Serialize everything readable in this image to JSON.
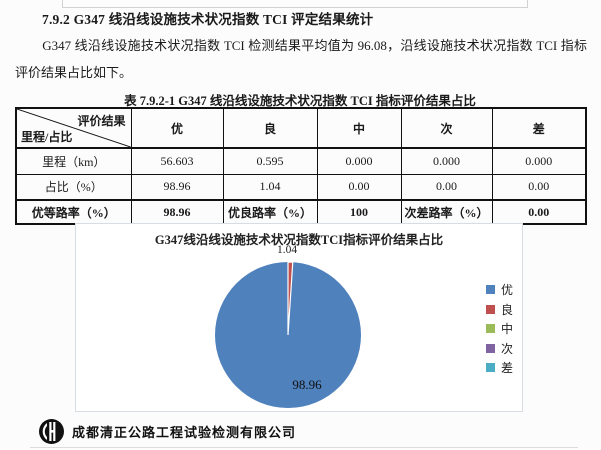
{
  "page": {
    "heading": "7.9.2 G347 线沿线设施技术状况指数 TCI 评定结果统计",
    "paragraph": "G347 线沿线设施技术状况指数 TCI 检测结果平均值为 96.08，沿线设施技术状况指数 TCI 指标评价结果占比如下。",
    "table_caption": "表 7.9.2-1   G347 线沿线设施技术状况指数 TCI 指标评价结果占比"
  },
  "table": {
    "corner": {
      "top_right": "评价结果",
      "bottom_left": "里程/占比"
    },
    "columns": [
      "优",
      "良",
      "中",
      "次",
      "差"
    ],
    "rows": [
      {
        "label": "里程（km）",
        "values": [
          "56.603",
          "0.595",
          "0.000",
          "0.000",
          "0.000"
        ]
      },
      {
        "label": "占比（%）",
        "values": [
          "98.96",
          "1.04",
          "0.00",
          "0.00",
          "0.00"
        ]
      }
    ],
    "summary_row": {
      "label1": "优等路率（%）",
      "value1": "98.96",
      "label2": "优良路率（%）",
      "value2": "100",
      "label3": "次差路率（%）",
      "value3": "0.00"
    }
  },
  "chart_data": {
    "type": "pie",
    "title": "G347线沿线设施技术状况指数TCI指标评价结果占比",
    "categories": [
      "优",
      "良",
      "中",
      "次",
      "差"
    ],
    "values": [
      98.96,
      1.04,
      0,
      0,
      0
    ],
    "colors": [
      "#4F81BD",
      "#C0504D",
      "#9BBB59",
      "#8064A2",
      "#4BACC6"
    ],
    "labels": {
      "major": "98.96",
      "minor": "1.04"
    },
    "legend_position": "right",
    "start_angle_deg": 0,
    "direction": "clockwise"
  },
  "footer": {
    "logo": "company-logo",
    "company": "成都清正公路工程试验检测有限公司"
  }
}
